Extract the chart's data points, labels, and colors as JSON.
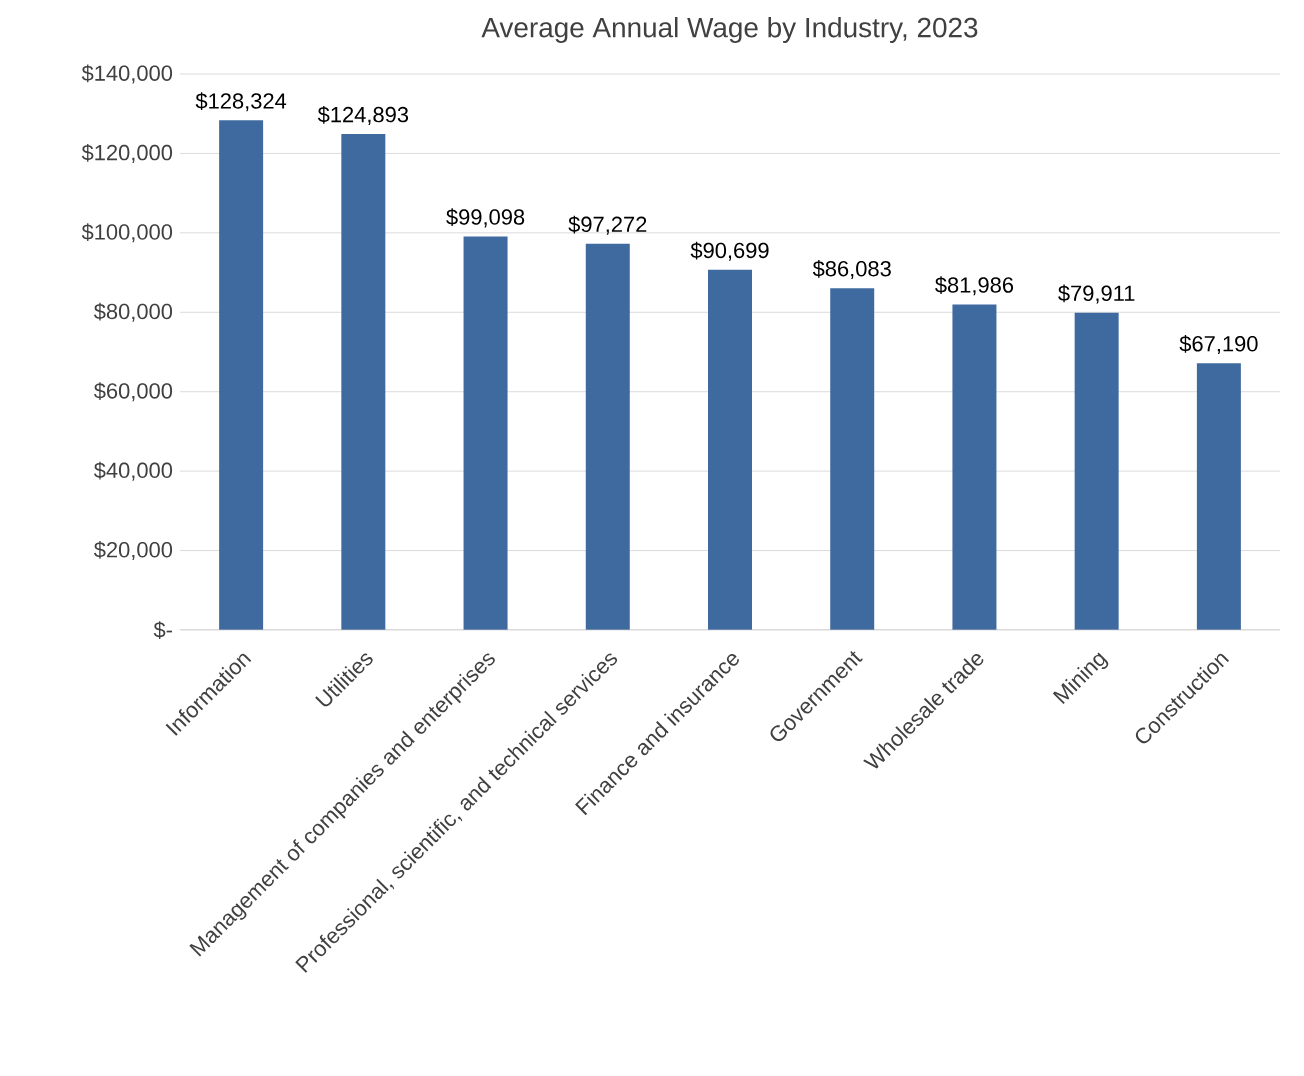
{
  "chart_data": {
    "type": "bar",
    "title": "Average Annual Wage by Industry, 2023",
    "categories": [
      "Information",
      "Utilities",
      "Management of companies and enterprises",
      "Professional, scientific, and technical services",
      "Finance and insurance",
      "Government",
      "Wholesale trade",
      "Mining",
      "Construction"
    ],
    "values": [
      128324,
      124893,
      99098,
      97272,
      90699,
      86083,
      81986,
      79911,
      67190
    ],
    "value_labels": [
      "$128,324",
      "$124,893",
      "$99,098",
      "$97,272",
      "$90,699",
      "$86,083",
      "$81,986",
      "$79,911",
      "$67,190"
    ],
    "color": "#3f6aa0",
    "ylim": [
      0,
      140000
    ],
    "yticks": [
      {
        "value": 0,
        "label": "$-"
      },
      {
        "value": 20000,
        "label": "$20,000"
      },
      {
        "value": 40000,
        "label": "$40,000"
      },
      {
        "value": 60000,
        "label": "$60,000"
      },
      {
        "value": 80000,
        "label": "$80,000"
      },
      {
        "value": 100000,
        "label": "$100,000"
      },
      {
        "value": 120000,
        "label": "$120,000"
      },
      {
        "value": 140000,
        "label": "$140,000"
      }
    ],
    "grid": "y"
  }
}
